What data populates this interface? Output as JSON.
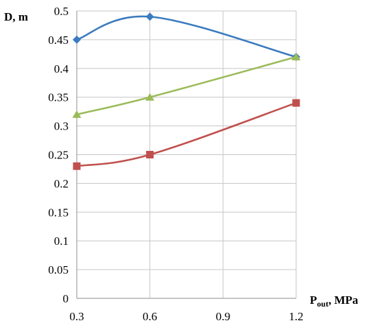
{
  "chart_data": {
    "type": "line",
    "title": "",
    "xlabel": {
      "main": "P",
      "sub": "out",
      "rest": ", MPa"
    },
    "ylabel": "D, m",
    "x_ticks": [
      "0.3",
      "0.6",
      "0.9",
      "1.2"
    ],
    "y_ticks": [
      "0",
      "0.05",
      "0.1",
      "0.15",
      "0.2",
      "0.25",
      "0.3",
      "0.35",
      "0.4",
      "0.45",
      "0.5"
    ],
    "xlim": [
      0.3,
      1.2
    ],
    "ylim": [
      0,
      0.5
    ],
    "grid": true,
    "series": [
      {
        "color": "#3b7bbf",
        "marker": "diamond",
        "x": [
          0.3,
          0.6,
          1.2
        ],
        "y": [
          0.45,
          0.49,
          0.42
        ]
      },
      {
        "color": "#9bbb59",
        "marker": "triangle",
        "x": [
          0.3,
          0.6,
          1.2
        ],
        "y": [
          0.32,
          0.35,
          0.42
        ]
      },
      {
        "color": "#c0504d",
        "marker": "square",
        "x": [
          0.3,
          0.6,
          1.2
        ],
        "y": [
          0.23,
          0.25,
          0.34
        ]
      }
    ]
  }
}
